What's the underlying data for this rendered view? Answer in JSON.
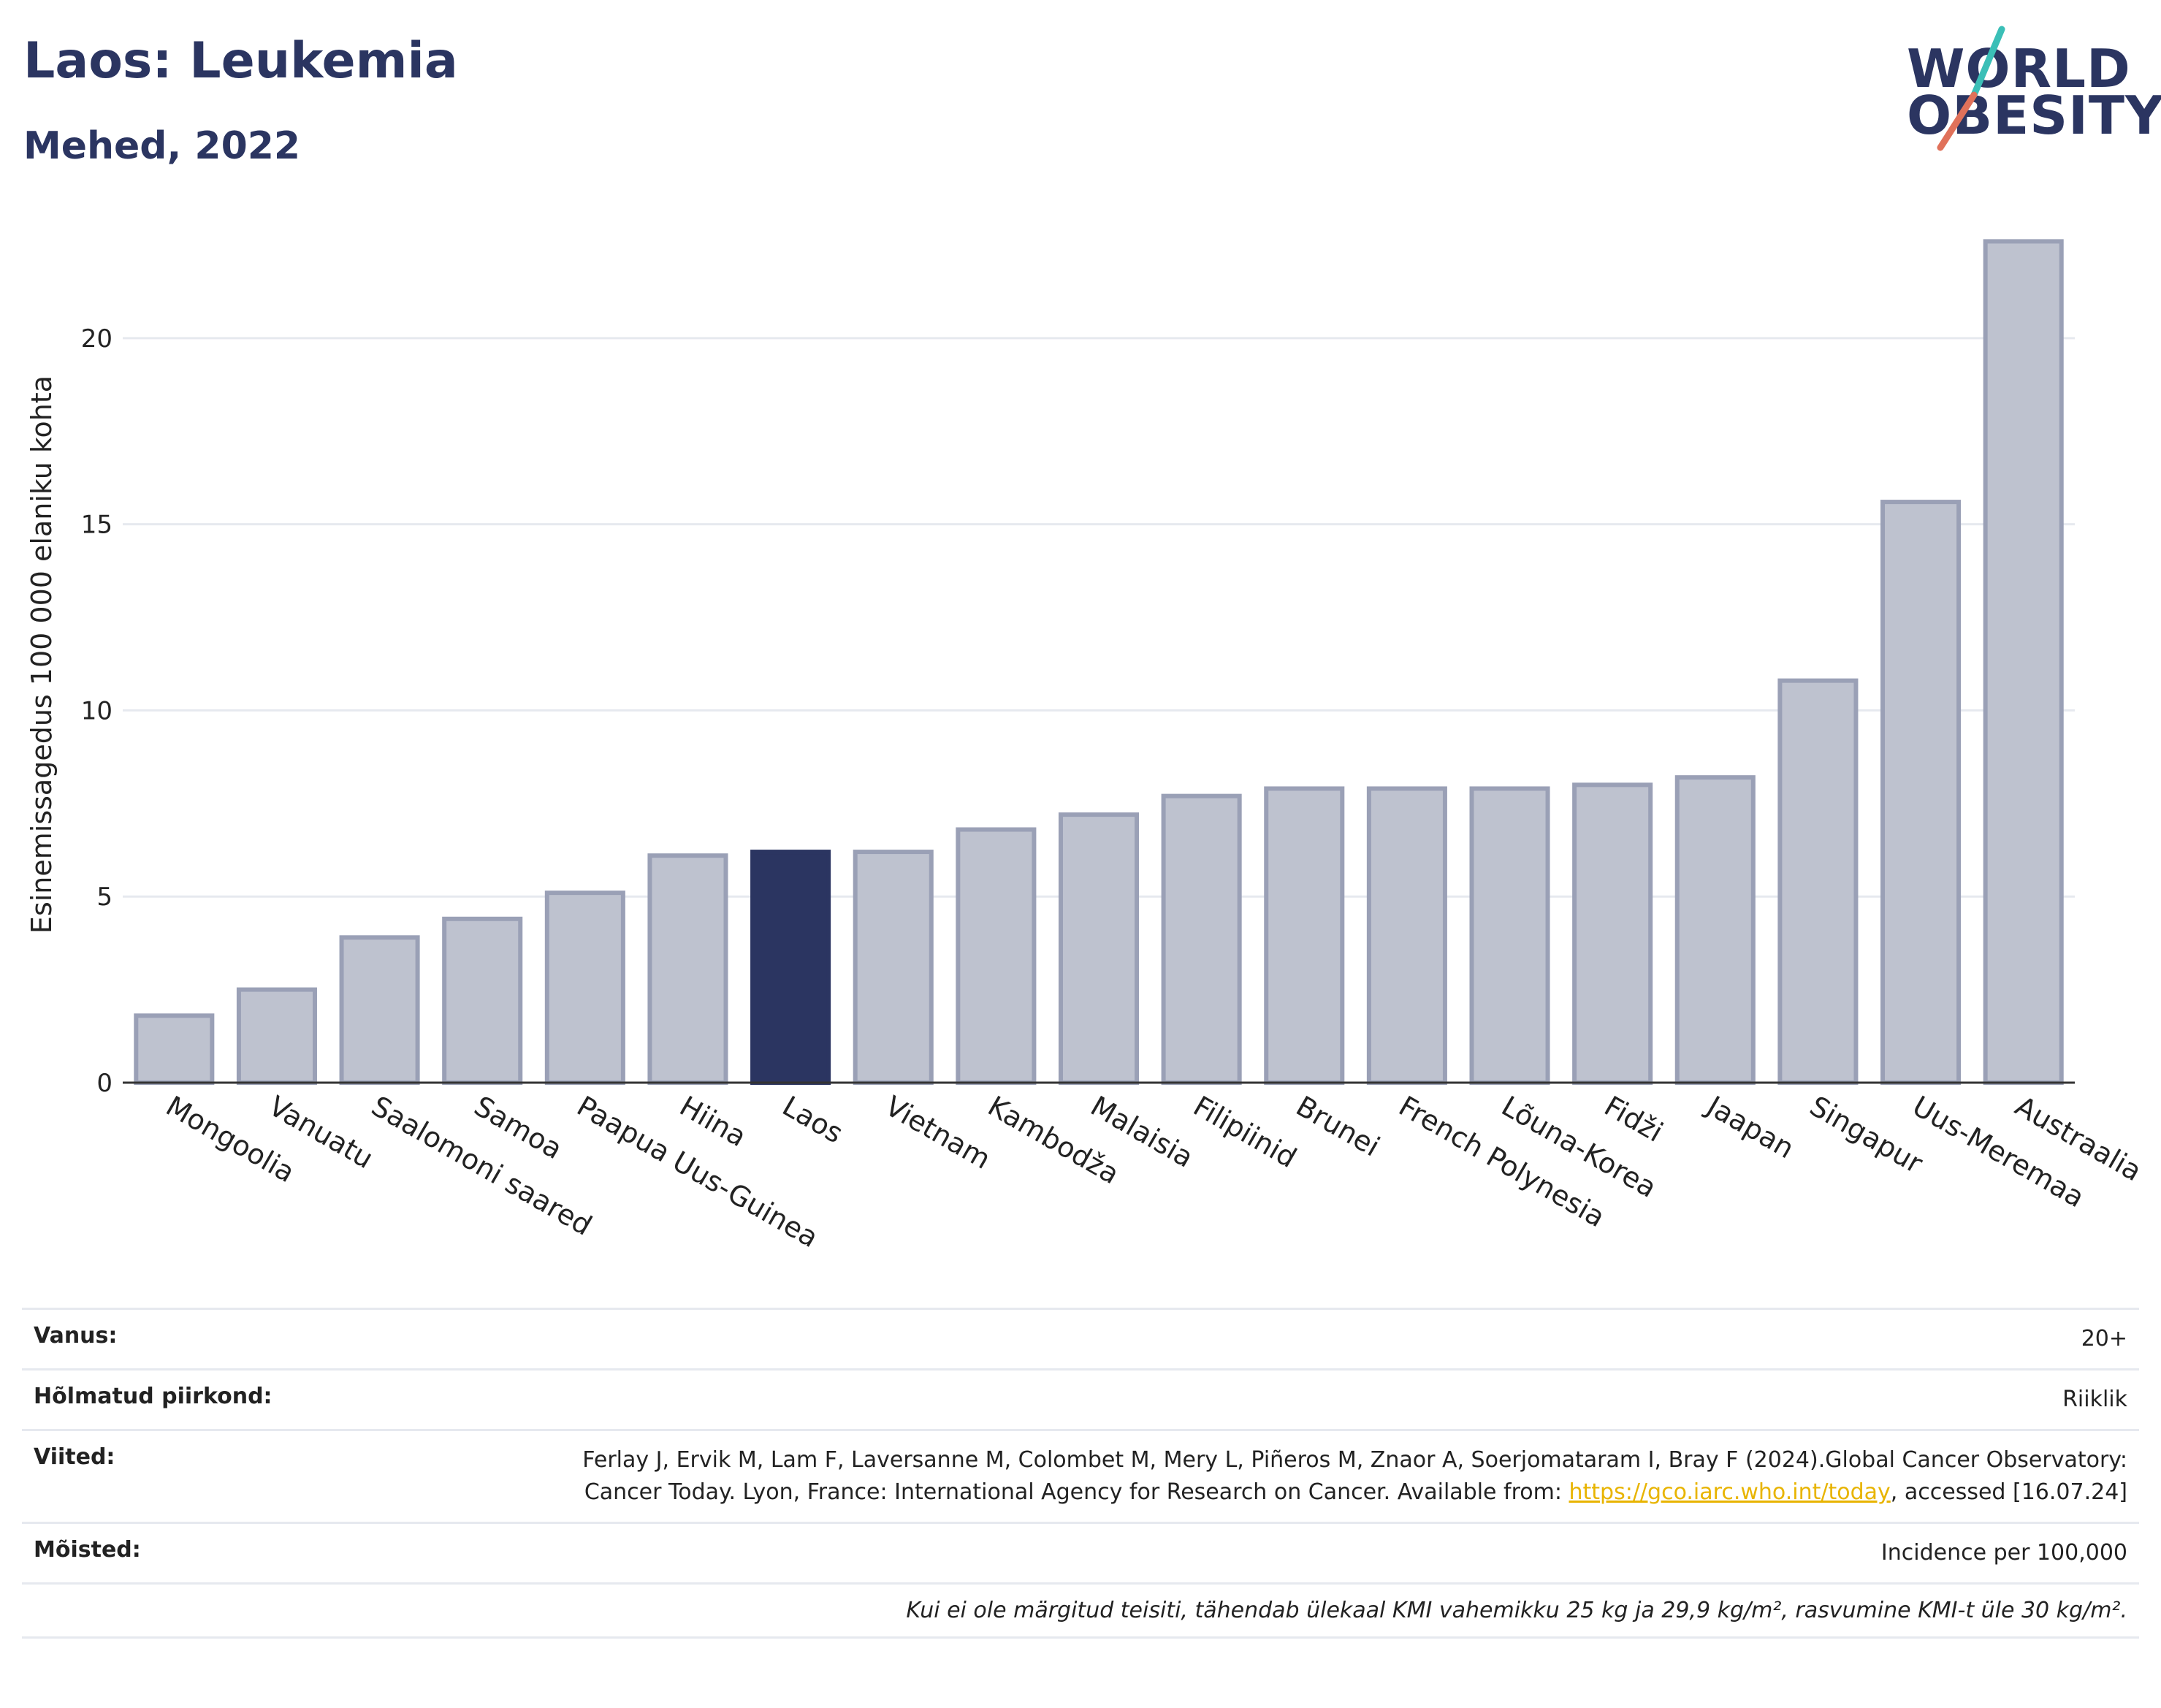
{
  "header": {
    "title": "Laos: Leukemia",
    "subtitle": "Mehed, 2022",
    "logo_line1": "WORLD",
    "logo_line2": "OBESITY"
  },
  "colors": {
    "bar_default": "#bec2cf",
    "bar_border": "#9aa0b6",
    "bar_highlight": "#2b3561",
    "title": "#2b3561",
    "grid": "#e6e9ef",
    "logo_slash_top": "#3bbfb7",
    "logo_slash_bottom": "#e0715a"
  },
  "chart_data": {
    "type": "bar",
    "ylabel": "Esinemissagedus 100 000 elaniku kohta",
    "ylim": [
      0,
      23
    ],
    "yticks": [
      0,
      5,
      10,
      15,
      20
    ],
    "grid": true,
    "highlight": "Laos",
    "categories": [
      "Mongoolia",
      "Vanuatu",
      "Saalomoni saared",
      "Samoa",
      "Paapua Uus-Guinea",
      "Hiina",
      "Laos",
      "Vietnam",
      "Kambodža",
      "Malaisia",
      "Filipiinid",
      "Brunei",
      "French Polynesia",
      "Lõuna-Korea",
      "Fidži",
      "Jaapan",
      "Singapur",
      "Uus-Meremaa",
      "Austraalia"
    ],
    "values": [
      1.8,
      2.5,
      3.9,
      4.4,
      5.1,
      6.1,
      6.2,
      6.2,
      6.8,
      7.2,
      7.7,
      7.9,
      7.9,
      7.9,
      8.0,
      8.2,
      10.8,
      15.6,
      22.6
    ]
  },
  "meta": {
    "age_label": "Vanus:",
    "age_value": "20+",
    "region_label": "Hõlmatud piirkond:",
    "region_value": "Riiklik",
    "refs_label": "Viited:",
    "refs_value_1": "Ferlay J, Ervik M, Lam F, Laversanne M, Colombet M, Mery L, Piñeros M, Znaor A, Soerjomataram I, Bray F (2024).Global Cancer Observatory: Cancer Today. Lyon, France: International Agency for Research on Cancer. Available from: ",
    "refs_link": "https://gco.iarc.who.int/today",
    "refs_value_2": ", accessed [16.07.24]",
    "definitions_label": "Mõisted:",
    "definitions_value": "Incidence per 100,000",
    "note": "Kui ei ole märgitud teisiti, tähendab ülekaal KMI vahemikku 25 kg ja 29,9 kg/m², rasvumine KMI-t üle 30 kg/m²."
  }
}
